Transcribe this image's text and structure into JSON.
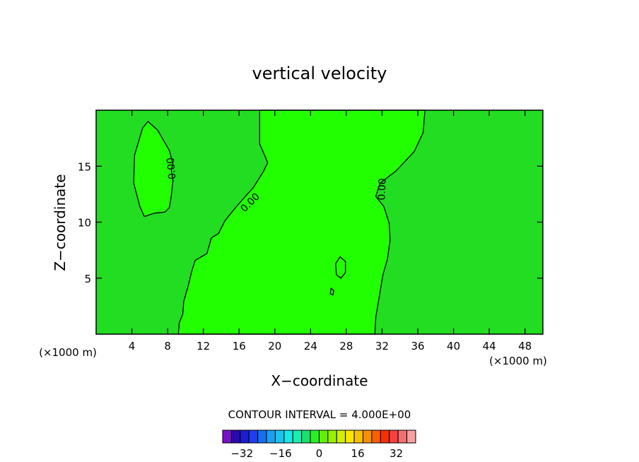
{
  "chart_data": {
    "type": "contour",
    "title": "vertical velocity",
    "xlabel": "X−coordinate",
    "ylabel": "Z−coordinate",
    "x_unit_left": "(×1000 m)",
    "x_unit_right": "(×1000 m)",
    "xlim": [
      0,
      50
    ],
    "ylim": [
      0,
      20
    ],
    "x_ticks": [
      4,
      8,
      12,
      16,
      20,
      24,
      28,
      32,
      36,
      40,
      44,
      48
    ],
    "x_tick_labels": [
      "4",
      "8",
      "12",
      "16",
      "20",
      "24",
      "28",
      "32",
      "36",
      "40",
      "44",
      "48"
    ],
    "y_ticks": [
      5,
      10,
      15
    ],
    "y_tick_labels": [
      "5",
      "10",
      "15"
    ],
    "contour_label": "0.00",
    "contour_interval_text": "CONTOUR INTERVAL = 4.000E+00",
    "colors": {
      "background_field": "#22dd22",
      "positive_region": "#22ff00",
      "contour_line": "#000000"
    },
    "regions": [
      {
        "name": "positive-plume",
        "points": [
          [
            18.3,
            20
          ],
          [
            18.3,
            17
          ],
          [
            18.9,
            15.9
          ],
          [
            19.2,
            15.3
          ],
          [
            18.7,
            14.5
          ],
          [
            17.6,
            13.1
          ],
          [
            16.7,
            12.3
          ],
          [
            15.6,
            11.3
          ],
          [
            14.4,
            10.1
          ],
          [
            13.7,
            9
          ],
          [
            12.9,
            8.6
          ],
          [
            12.4,
            7.2
          ],
          [
            11.1,
            6.6
          ],
          [
            10.7,
            5.6
          ],
          [
            10.3,
            4.3
          ],
          [
            9.8,
            2.9
          ],
          [
            9.7,
            1.8
          ],
          [
            9.3,
            1
          ],
          [
            9.2,
            0
          ],
          [
            31.2,
            0
          ],
          [
            31.3,
            1.5
          ],
          [
            31.7,
            3.4
          ],
          [
            32.1,
            5.3
          ],
          [
            32.6,
            6.7
          ],
          [
            32.9,
            8.4
          ],
          [
            32.8,
            9.9
          ],
          [
            32.2,
            11.4
          ],
          [
            31.3,
            12.3
          ],
          [
            31.8,
            13.5
          ],
          [
            33.6,
            14.6
          ],
          [
            35.6,
            16.3
          ],
          [
            36.6,
            18
          ],
          [
            36.8,
            20
          ]
        ]
      },
      {
        "name": "left-island",
        "points": [
          [
            5.8,
            19
          ],
          [
            6.9,
            18.2
          ],
          [
            7.9,
            16.8
          ],
          [
            8.2,
            16.4
          ],
          [
            8.6,
            15.2
          ],
          [
            8.4,
            14.7
          ],
          [
            8.6,
            13.7
          ],
          [
            8.4,
            12.3
          ],
          [
            8.2,
            11.3
          ],
          [
            7.7,
            10.9
          ],
          [
            6.5,
            10.8
          ],
          [
            5.4,
            10.5
          ],
          [
            4.9,
            11.4
          ],
          [
            4.2,
            13.5
          ],
          [
            4.3,
            16
          ],
          [
            5.2,
            18.4
          ]
        ]
      },
      {
        "name": "small-cell-a",
        "points": [
          [
            27.3,
            6.9
          ],
          [
            27.9,
            6.5
          ],
          [
            27.9,
            5.5
          ],
          [
            27.4,
            5.0
          ],
          [
            26.9,
            5.3
          ],
          [
            26.8,
            6.3
          ]
        ]
      },
      {
        "name": "small-cell-b",
        "points": [
          [
            26.3,
            4.1
          ],
          [
            26.6,
            3.9
          ],
          [
            26.5,
            3.5
          ],
          [
            26.2,
            3.6
          ]
        ]
      }
    ],
    "colorbar": {
      "tick_labels": [
        "−32",
        "−16",
        "0",
        "16",
        "32"
      ],
      "tick_values": [
        -32,
        -16,
        0,
        16,
        32
      ],
      "range": [
        -40,
        40
      ],
      "colors": [
        "#7a10c8",
        "#2b09b2",
        "#1e1ccf",
        "#1e3ef2",
        "#1470f0",
        "#1aa0f0",
        "#18c4f0",
        "#18e8e8",
        "#16f0b0",
        "#18e070",
        "#28f028",
        "#60f000",
        "#98f000",
        "#d0f000",
        "#f8e800",
        "#f8c000",
        "#f89000",
        "#f86000",
        "#f83000",
        "#f84040",
        "#f07070",
        "#f8a0a0"
      ]
    }
  }
}
